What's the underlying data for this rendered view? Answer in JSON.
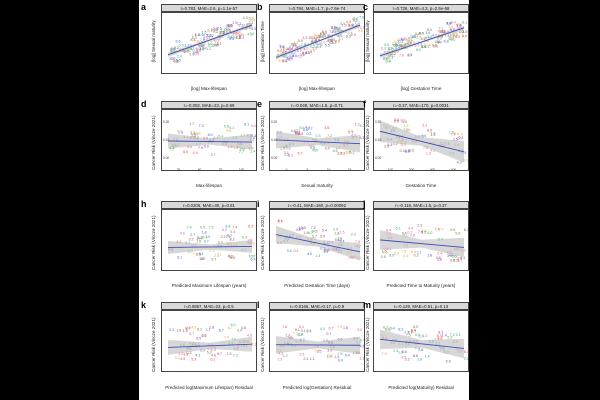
{
  "chart_data": [
    {
      "id": "a",
      "type": "scatter",
      "title": "r=0.783, MAE=2.6, p=1.1e-57",
      "xlabel": "[log] Max-lifespan",
      "ylabel": "[log] Sexual maturity",
      "fit": [
        0.3,
        0.85
      ],
      "band": 0.04,
      "seed": 11,
      "n": 110,
      "spread": 0.18,
      "trend": 0.55,
      "trendBase": 0.3,
      "xticks": [],
      "yticks": []
    },
    {
      "id": "b",
      "type": "scatter",
      "title": "r=0.784, MAE=1.7, p=7.6e-74",
      "xlabel": "[log] Max-lifespan",
      "ylabel": "[log] Gestation Time",
      "fit": [
        0.25,
        0.85
      ],
      "band": 0.04,
      "seed": 23,
      "n": 110,
      "spread": 0.16,
      "trend": 0.6,
      "trendBase": 0.25,
      "xticks": [],
      "yticks": []
    },
    {
      "id": "c",
      "type": "scatter",
      "title": "r=0.726, MAE=4.3, p=2.5e-58",
      "xlabel": "[log] Gestation Time",
      "ylabel": "[log] Sexual maturity",
      "fit": [
        0.28,
        0.8
      ],
      "band": 0.04,
      "seed": 37,
      "n": 110,
      "spread": 0.18,
      "trend": 0.52,
      "trendBase": 0.28,
      "xticks": [],
      "yticks": []
    },
    {
      "id": "d",
      "type": "scatter",
      "title": "r=-0.002, MAE=23, p=0.69",
      "xlabel": "Max-lifespan",
      "ylabel": "Cancer Risk (Vincze 2021)",
      "fit": [
        0.5,
        0.48
      ],
      "band": 0.14,
      "seed": 41,
      "n": 55,
      "spread": 0.3,
      "trend": 0.0,
      "trendBase": 0.5,
      "xticks": [
        "25",
        "50",
        "75",
        "100"
      ],
      "yticks": [
        "0.00",
        "0.10",
        "0.20"
      ]
    },
    {
      "id": "e",
      "type": "scatter",
      "title": "r=-0.049, MAE=1.5, p=0.71",
      "xlabel": "Sexual maturity",
      "ylabel": "Cancer Risk (Vincze 2021)",
      "fit": [
        0.52,
        0.45
      ],
      "band": 0.16,
      "seed": 53,
      "n": 55,
      "spread": 0.3,
      "trend": 0.0,
      "trendBase": 0.5,
      "xticks": [
        "0",
        "5",
        "10",
        "15"
      ],
      "yticks": [
        "0.00",
        "0.10",
        "0.20"
      ]
    },
    {
      "id": "f",
      "type": "scatter",
      "title": "r=-0.37, MAE=170, p=0.0031",
      "xlabel": "Gestation Time",
      "ylabel": "Cancer Risk (Vincze 2021)",
      "fit": [
        0.68,
        0.3
      ],
      "band": 0.2,
      "seed": 67,
      "n": 55,
      "spread": 0.3,
      "trend": -0.3,
      "trendBase": 0.65,
      "xticks": [
        "100",
        "200",
        "300",
        "400"
      ],
      "yticks": [
        "0.00",
        "0.10",
        "0.20"
      ]
    },
    {
      "id": "h",
      "type": "scatter",
      "title": "r=0.0206, MAE=30, p=0.81",
      "xlabel": "Predicted Maximum Lifespan (years)",
      "ylabel": "Cancer Risk (Vincze 2021)",
      "fit": [
        0.38,
        0.4
      ],
      "band": 0.12,
      "seed": 71,
      "n": 55,
      "spread": 0.32,
      "trend": 0.0,
      "trendBase": 0.45,
      "xticks": [],
      "yticks": []
    },
    {
      "id": "i",
      "type": "scatter",
      "title": "r=-0.41, MAE=160, p=0.00092",
      "xlabel": "Predicted Gestation Time (days)",
      "ylabel": "Cancer Risk (Vincze 2021)",
      "fit": [
        0.62,
        0.3
      ],
      "band": 0.16,
      "seed": 83,
      "n": 55,
      "spread": 0.3,
      "trend": -0.3,
      "trendBase": 0.6,
      "xticks": [],
      "yticks": []
    },
    {
      "id": "j",
      "type": "scatter",
      "title": "r=-0.116, MAE=1.5, p=0.37",
      "xlabel": "Predicted Time to Maturity (years)",
      "ylabel": "Cancer Risk (Vincze 2021)",
      "fit": [
        0.52,
        0.38
      ],
      "band": 0.18,
      "seed": 97,
      "n": 50,
      "spread": 0.32,
      "trend": -0.1,
      "trendBase": 0.5,
      "xticks": [],
      "yticks": []
    },
    {
      "id": "k",
      "type": "scatter",
      "title": "r=0.0857, MAE=23, p=0.5",
      "xlabel": "Predicted log(Maximum Lifespan) Residual",
      "ylabel": "Cancer Risk (Vincze 2021)",
      "fit": [
        0.4,
        0.46
      ],
      "band": 0.14,
      "seed": 101,
      "n": 55,
      "spread": 0.32,
      "trend": 0.05,
      "trendBase": 0.45,
      "xticks": [],
      "yticks": []
    },
    {
      "id": "l",
      "type": "scatter",
      "title": "r=-0.0166, MAE=0.17, p=0.9",
      "xlabel": "Predicted log(Gestation) Residual",
      "ylabel": "Cancer Risk (Vincze 2021)",
      "fit": [
        0.45,
        0.44
      ],
      "band": 0.16,
      "seed": 113,
      "n": 55,
      "spread": 0.32,
      "trend": 0.0,
      "trendBase": 0.45,
      "xticks": [],
      "yticks": []
    },
    {
      "id": "m",
      "type": "scatter",
      "title": "r=-0.129, MAE=0.51, p=0.13",
      "xlabel": "Predicted log(Maturity) Residual",
      "ylabel": "Cancer Risk (Vincze 2021)",
      "fit": [
        0.55,
        0.38
      ],
      "band": 0.18,
      "seed": 127,
      "n": 55,
      "spread": 0.32,
      "trend": -0.12,
      "trendBase": 0.5,
      "xticks": [],
      "yticks": []
    }
  ],
  "colors": {
    "fit_line": "#3b4fb8",
    "band": "#bdbdbd",
    "palette": [
      "#e04646",
      "#e8a33a",
      "#4aa84a",
      "#2f6fd0",
      "#8b3fb0",
      "#d65aa8",
      "#2aa7a0",
      "#8a6a3a"
    ]
  }
}
